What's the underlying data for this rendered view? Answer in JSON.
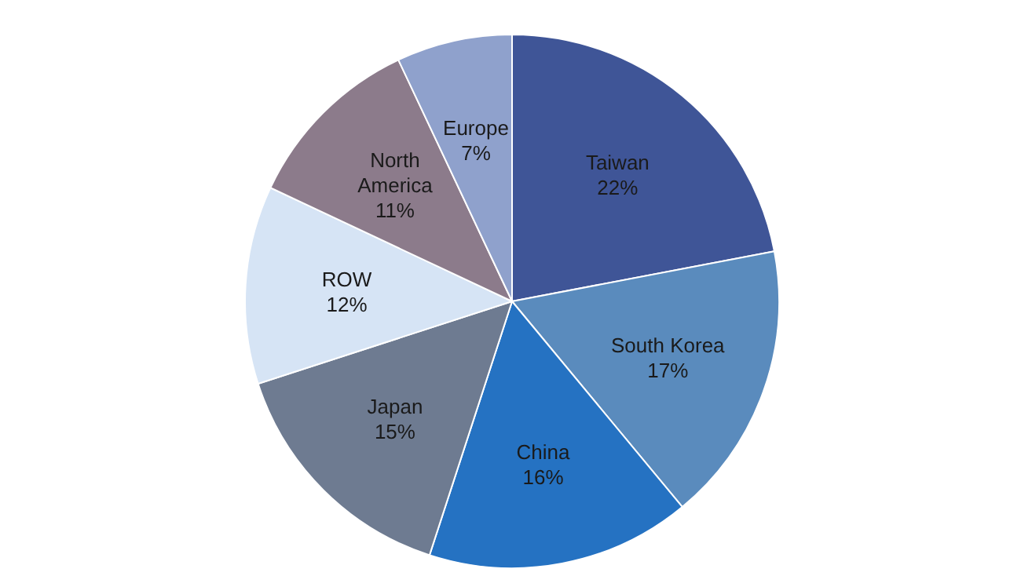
{
  "chart_data": {
    "type": "pie",
    "categories": [
      "Taiwan",
      "South Korea",
      "China",
      "Japan",
      "ROW",
      "North America",
      "Europe"
    ],
    "values": [
      22,
      17,
      16,
      15,
      12,
      11,
      7
    ],
    "value_labels": [
      "22%",
      "17%",
      "16%",
      "15%",
      "12%",
      "11%",
      "7%"
    ],
    "colors": [
      "#3f5597",
      "#5a8bbd",
      "#2572c2",
      "#6e7b91",
      "#d6e4f5",
      "#8c7b8b",
      "#8fa1cc"
    ],
    "legend": false
  }
}
